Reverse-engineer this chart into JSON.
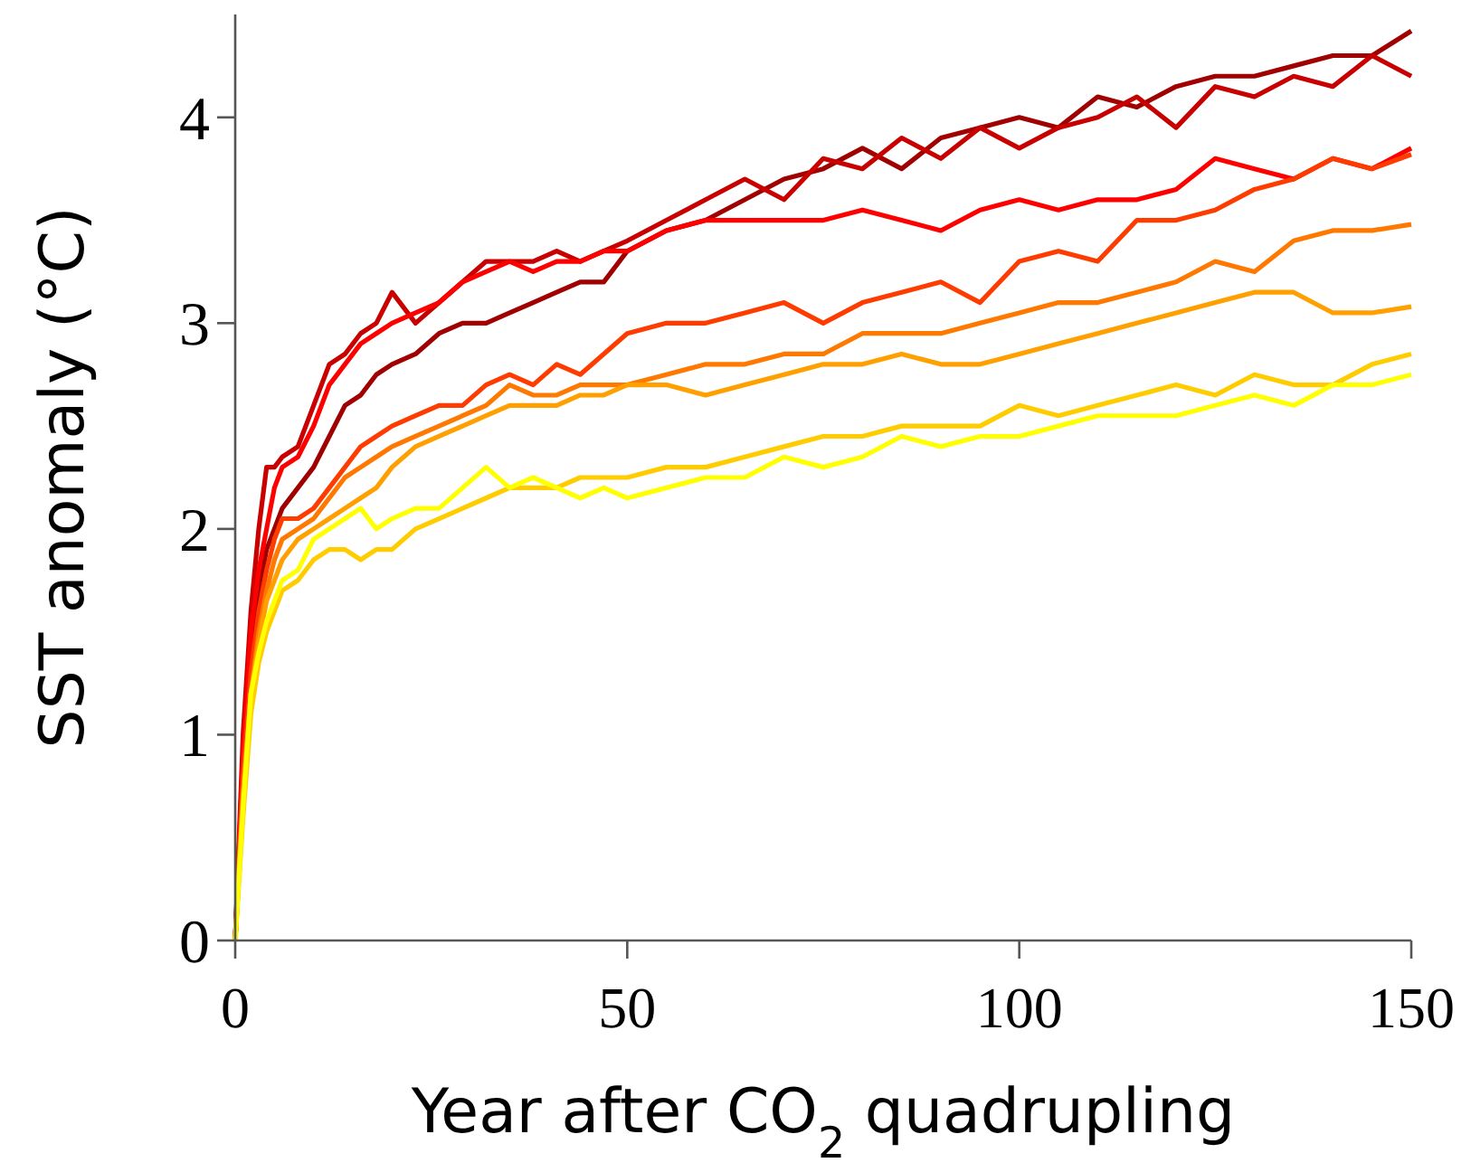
{
  "chart_data": {
    "type": "line",
    "xlabel": "Year after CO$_{2}$ quadrupling",
    "ylabel": "SST anomaly (°C)",
    "xlim": [
      0,
      150
    ],
    "ylim": [
      0,
      4.5
    ],
    "xticks": [
      0,
      50,
      100,
      150
    ],
    "yticks": [
      0,
      1,
      2,
      3,
      4
    ],
    "grid": false,
    "marker": "none",
    "line_style": "solid",
    "x": [
      0,
      1,
      2,
      3,
      4,
      5,
      6,
      8,
      10,
      12,
      14,
      16,
      18,
      20,
      23,
      26,
      29,
      32,
      35,
      38,
      41,
      44,
      47,
      50,
      55,
      60,
      65,
      70,
      75,
      80,
      85,
      90,
      95,
      100,
      105,
      110,
      115,
      120,
      125,
      130,
      135,
      140,
      145,
      150
    ],
    "series": [
      {
        "color": "#a00000",
        "values": [
          0,
          0.9,
          1.4,
          1.7,
          1.9,
          2.0,
          2.1,
          2.2,
          2.3,
          2.45,
          2.6,
          2.65,
          2.75,
          2.8,
          2.85,
          2.95,
          3.0,
          3.0,
          3.05,
          3.1,
          3.15,
          3.2,
          3.2,
          3.35,
          3.45,
          3.5,
          3.6,
          3.7,
          3.75,
          3.85,
          3.75,
          3.9,
          3.95,
          4.0,
          3.95,
          4.1,
          4.05,
          4.15,
          4.2,
          4.2,
          4.25,
          4.3,
          4.3,
          4.42
        ]
      },
      {
        "color": "#c80000",
        "values": [
          0,
          1.0,
          1.6,
          2.0,
          2.3,
          2.3,
          2.35,
          2.4,
          2.6,
          2.8,
          2.85,
          2.95,
          3.0,
          3.15,
          3.0,
          3.1,
          3.2,
          3.3,
          3.3,
          3.3,
          3.35,
          3.3,
          3.35,
          3.4,
          3.5,
          3.6,
          3.7,
          3.6,
          3.8,
          3.75,
          3.9,
          3.8,
          3.95,
          3.85,
          3.95,
          4.0,
          4.1,
          3.95,
          4.15,
          4.1,
          4.2,
          4.15,
          4.3,
          4.2
        ]
      },
      {
        "color": "#ff0000",
        "values": [
          0,
          0.9,
          1.5,
          1.8,
          2.0,
          2.2,
          2.3,
          2.35,
          2.5,
          2.7,
          2.8,
          2.9,
          2.95,
          3.0,
          3.05,
          3.1,
          3.2,
          3.25,
          3.3,
          3.25,
          3.3,
          3.3,
          3.35,
          3.35,
          3.45,
          3.5,
          3.5,
          3.5,
          3.5,
          3.55,
          3.5,
          3.45,
          3.55,
          3.6,
          3.55,
          3.6,
          3.6,
          3.65,
          3.8,
          3.75,
          3.7,
          3.8,
          3.75,
          3.85
        ]
      },
      {
        "color": "#ff3c00",
        "values": [
          0,
          0.8,
          1.3,
          1.6,
          1.8,
          1.95,
          2.05,
          2.05,
          2.1,
          2.2,
          2.3,
          2.4,
          2.45,
          2.5,
          2.55,
          2.6,
          2.6,
          2.7,
          2.75,
          2.7,
          2.8,
          2.75,
          2.85,
          2.95,
          3.0,
          3.0,
          3.05,
          3.1,
          3.0,
          3.1,
          3.15,
          3.2,
          3.1,
          3.3,
          3.35,
          3.3,
          3.5,
          3.5,
          3.55,
          3.65,
          3.7,
          3.8,
          3.75,
          3.82
        ]
      },
      {
        "color": "#ff7800",
        "values": [
          0,
          0.7,
          1.2,
          1.5,
          1.7,
          1.85,
          1.95,
          2.0,
          2.05,
          2.15,
          2.25,
          2.3,
          2.35,
          2.4,
          2.45,
          2.5,
          2.55,
          2.6,
          2.7,
          2.65,
          2.65,
          2.7,
          2.7,
          2.7,
          2.75,
          2.8,
          2.8,
          2.85,
          2.85,
          2.95,
          2.95,
          2.95,
          3.0,
          3.05,
          3.1,
          3.1,
          3.15,
          3.2,
          3.3,
          3.25,
          3.4,
          3.45,
          3.45,
          3.48
        ]
      },
      {
        "color": "#ffa000",
        "values": [
          0,
          0.7,
          1.2,
          1.45,
          1.65,
          1.75,
          1.85,
          1.95,
          2.0,
          2.05,
          2.1,
          2.15,
          2.2,
          2.3,
          2.4,
          2.45,
          2.5,
          2.55,
          2.6,
          2.6,
          2.6,
          2.65,
          2.65,
          2.7,
          2.7,
          2.65,
          2.7,
          2.75,
          2.8,
          2.8,
          2.85,
          2.8,
          2.8,
          2.85,
          2.9,
          2.95,
          3.0,
          3.05,
          3.1,
          3.15,
          3.15,
          3.05,
          3.05,
          3.08
        ]
      },
      {
        "color": "#ffcc00",
        "values": [
          0,
          0.6,
          1.1,
          1.35,
          1.5,
          1.6,
          1.7,
          1.75,
          1.85,
          1.9,
          1.9,
          1.85,
          1.9,
          1.9,
          2.0,
          2.05,
          2.1,
          2.15,
          2.2,
          2.2,
          2.2,
          2.25,
          2.25,
          2.25,
          2.3,
          2.3,
          2.35,
          2.4,
          2.45,
          2.45,
          2.5,
          2.5,
          2.5,
          2.6,
          2.55,
          2.6,
          2.65,
          2.7,
          2.65,
          2.75,
          2.7,
          2.7,
          2.8,
          2.85
        ]
      },
      {
        "color": "#ffff00",
        "values": [
          0,
          0.65,
          1.2,
          1.4,
          1.55,
          1.65,
          1.75,
          1.8,
          1.95,
          2.0,
          2.05,
          2.1,
          2.0,
          2.05,
          2.1,
          2.1,
          2.2,
          2.3,
          2.2,
          2.25,
          2.2,
          2.15,
          2.2,
          2.15,
          2.2,
          2.25,
          2.25,
          2.35,
          2.3,
          2.35,
          2.45,
          2.4,
          2.45,
          2.45,
          2.5,
          2.55,
          2.55,
          2.55,
          2.6,
          2.65,
          2.6,
          2.7,
          2.7,
          2.75
        ]
      }
    ]
  }
}
